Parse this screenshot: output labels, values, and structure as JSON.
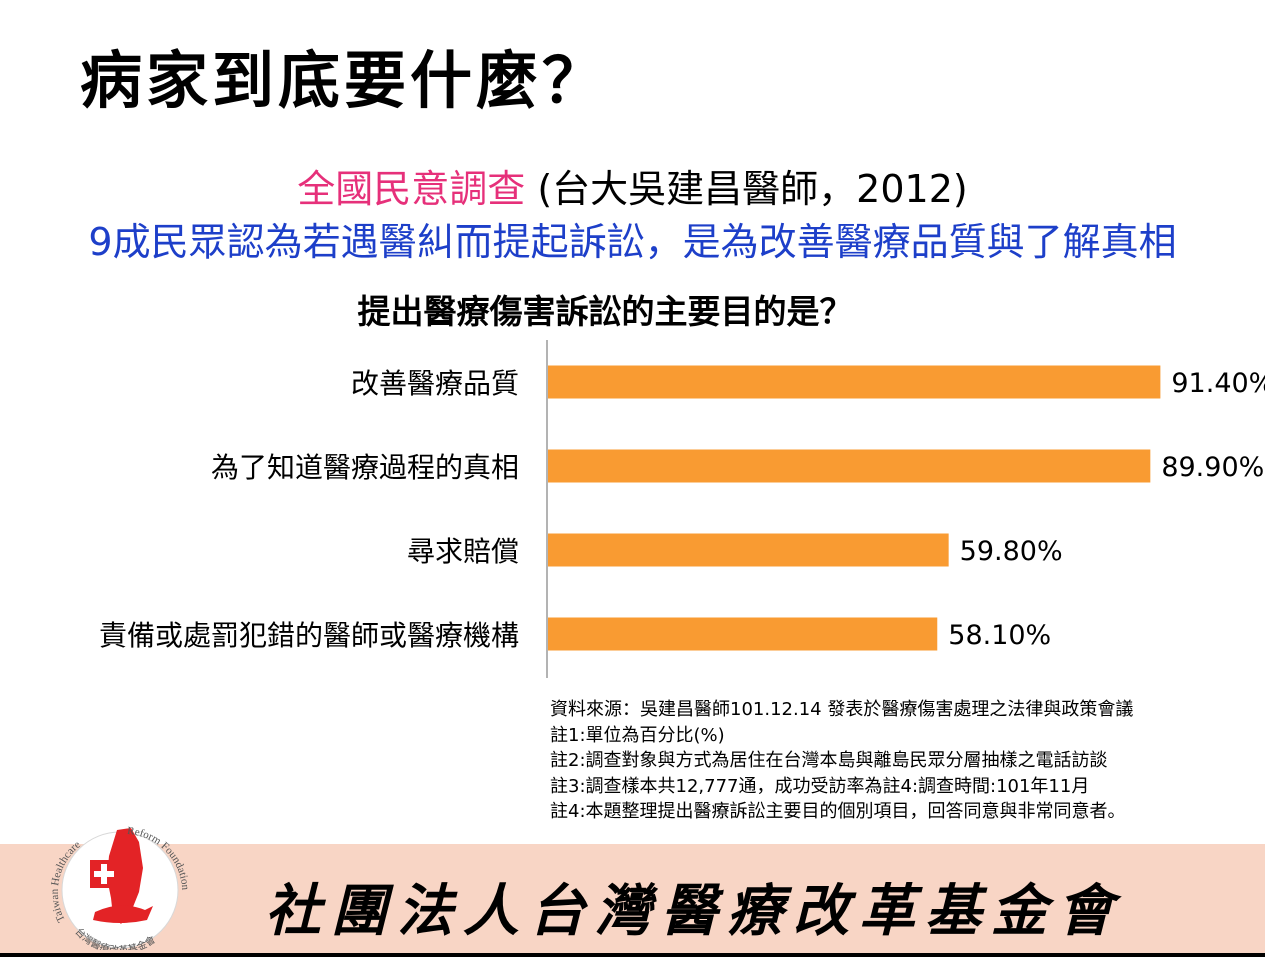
{
  "slide": {
    "title": "病家到底要什麼？",
    "subtitle_pink": "全國民意調查",
    "subtitle_rest": "  (台大吳建昌醫師，2012)",
    "subtitle_line2": "9成民眾認為若遇醫糾而提起訴訟，是為改善醫療品質與了解真相"
  },
  "chart_data": {
    "type": "bar",
    "orientation": "horizontal",
    "title": "提出醫療傷害訴訟的主要目的是？",
    "categories": [
      "改善醫療品質",
      "為了知道醫療過程的真相",
      "尋求賠償",
      "責備或處罰犯錯的醫師或醫療機構"
    ],
    "values": [
      91.4,
      89.9,
      59.8,
      58.1
    ],
    "value_labels": [
      "91.40%",
      "89.90%",
      "59.80%",
      "58.10%"
    ],
    "xlim": [
      0,
      100
    ],
    "bar_color": "#f99b32",
    "grid": false,
    "legend": "none"
  },
  "notes": [
    "資料來源：吳建昌醫師101.12.14 發表於醫療傷害處理之法律與政策會議",
    "註1:單位為百分比(%)",
    "註2:調查對象與方式為居住在台灣本島與離島民眾分層抽樣之電話訪談",
    "註3:調查樣本共12,777通，成功受訪率為註4:調查時間:101年11月",
    "註4:本題整理提出醫療訴訟主要目的個別項目，回答同意與非常同意者。"
  ],
  "footer": {
    "foundation_name": "社團法人台灣醫療改革基金會",
    "logo_text_left": "Taiwan Healthcare",
    "logo_text_right": "Reform Foundation",
    "logo_text_bottom": "台灣醫療改革基金會",
    "band_color": "#f8d5c5"
  }
}
